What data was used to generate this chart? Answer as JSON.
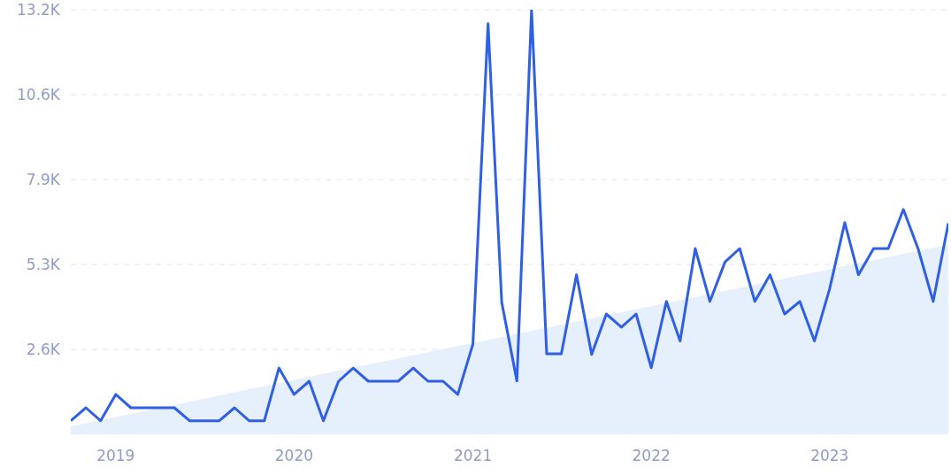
{
  "chart_data": {
    "type": "line",
    "x": [
      "2018-10",
      "2018-11",
      "2018-12",
      "2019-01",
      "2019-02",
      "2019-03",
      "2019-04",
      "2019-05",
      "2019-06",
      "2019-07",
      "2019-08",
      "2019-09",
      "2019-10",
      "2019-11",
      "2019-12",
      "2020-01",
      "2020-02",
      "2020-03",
      "2020-04",
      "2020-05",
      "2020-06",
      "2020-07",
      "2020-08",
      "2020-09",
      "2020-10",
      "2020-11",
      "2020-12",
      "2021-01",
      "2021-02",
      "2021-03",
      "2021-04",
      "2021-05",
      "2021-06",
      "2021-07",
      "2021-08",
      "2021-09",
      "2021-10",
      "2021-11",
      "2021-12",
      "2022-01",
      "2022-02",
      "2022-03",
      "2022-04",
      "2022-05",
      "2022-06",
      "2022-07",
      "2022-08",
      "2022-09",
      "2022-10",
      "2022-11",
      "2022-12",
      "2023-01",
      "2023-02",
      "2023-03",
      "2023-04",
      "2023-05",
      "2023-06",
      "2023-07",
      "2023-08",
      "2023-09"
    ],
    "series": [
      {
        "color": "#2f5fe3",
        "values": [
          420,
          825,
          420,
          1240,
          825,
          825,
          825,
          825,
          420,
          420,
          420,
          825,
          420,
          420,
          2060,
          1240,
          1650,
          420,
          1650,
          2060,
          1650,
          1650,
          1650,
          2060,
          1650,
          1650,
          1240,
          2800,
          12770,
          4100,
          1660,
          13200,
          2500,
          2500,
          4960,
          2480,
          3740,
          3330,
          3740,
          2070,
          4130,
          2900,
          5775,
          4130,
          5360,
          5775,
          4130,
          4960,
          3740,
          4130,
          2900,
          4520,
          6580,
          4960,
          5775,
          5775,
          6990,
          5775,
          4130,
          6560
        ]
      },
      {
        "type": "area",
        "color": "#e6effc",
        "x": [
          "2018-10",
          "2023-09"
        ],
        "values": [
          250,
          5900
        ]
      }
    ],
    "xlim": [
      "2018-10",
      "2023-09"
    ],
    "xticks": [
      {
        "value": "2019-01",
        "label": "2019"
      },
      {
        "value": "2020-01",
        "label": "2020"
      },
      {
        "value": "2021-01",
        "label": "2021"
      },
      {
        "value": "2022-01",
        "label": "2022"
      },
      {
        "value": "2023-01",
        "label": "2023"
      }
    ],
    "ylim": [
      0,
      13200
    ],
    "yticks": [
      {
        "value": 2640,
        "label": "2.6K"
      },
      {
        "value": 5280,
        "label": "5.3K"
      },
      {
        "value": 7920,
        "label": "7.9K"
      },
      {
        "value": 10560,
        "label": "10.6K"
      },
      {
        "value": 13200,
        "label": "13.2K"
      }
    ],
    "grid": "y",
    "marker": "none",
    "line_style": "solid"
  }
}
